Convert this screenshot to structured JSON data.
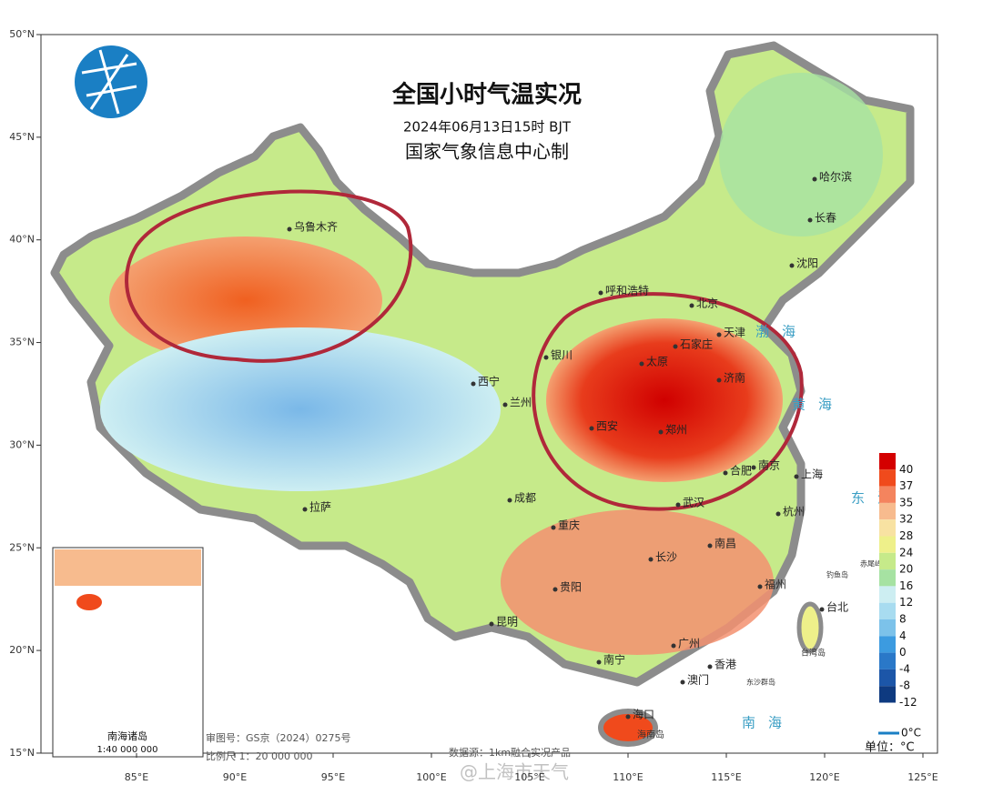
{
  "header": {
    "title": "全国小时气温实况",
    "subtitle": "2024年06月13日15时 BJT",
    "producer": "国家气象信息中心制"
  },
  "map": {
    "lat_ticks": [
      {
        "value": 50,
        "label": "50°N"
      },
      {
        "value": 45,
        "label": "45°N"
      },
      {
        "value": 40,
        "label": "40°N"
      },
      {
        "value": 35,
        "label": "35°N"
      },
      {
        "value": 30,
        "label": "30°N"
      },
      {
        "value": 25,
        "label": "25°N"
      },
      {
        "value": 20,
        "label": "20°N"
      },
      {
        "value": 15,
        "label": "15°N"
      }
    ],
    "lon_ticks": [
      {
        "value": 85,
        "label": "85°E"
      },
      {
        "value": 90,
        "label": "90°E"
      },
      {
        "value": 95,
        "label": "95°E"
      },
      {
        "value": 100,
        "label": "100°E"
      },
      {
        "value": 105,
        "label": "105°E"
      },
      {
        "value": 110,
        "label": "110°E"
      },
      {
        "value": 115,
        "label": "115°E"
      },
      {
        "value": 120,
        "label": "120°E"
      },
      {
        "value": 125,
        "label": "125°E"
      }
    ],
    "cities": [
      "乌鲁木齐",
      "哈尔滨",
      "长春",
      "沈阳",
      "呼和浩特",
      "北京",
      "天津",
      "石家庄",
      "太原",
      "济南",
      "银川",
      "西宁",
      "兰州",
      "西安",
      "郑州",
      "合肥",
      "南京",
      "上海",
      "拉萨",
      "成都",
      "重庆",
      "武汉",
      "杭州",
      "长沙",
      "南昌",
      "贵阳",
      "福州",
      "台北",
      "昆明",
      "南宁",
      "广州",
      "香港",
      "澳门",
      "海口"
    ],
    "islands": [
      "海南岛",
      "台湾岛",
      "东沙群岛",
      "钓鱼岛",
      "赤尾屿"
    ],
    "seas": [
      "渤海",
      "黄海",
      "东海",
      "南海"
    ]
  },
  "legend": {
    "unit": "单位：°C",
    "zero_line": "0°C",
    "items": [
      {
        "value": 40,
        "color": "#d40000"
      },
      {
        "value": 37,
        "color": "#f04a1c"
      },
      {
        "value": 35,
        "color": "#f4845e"
      },
      {
        "value": 32,
        "color": "#f7bb8e"
      },
      {
        "value": 28,
        "color": "#f8e2a2"
      },
      {
        "value": 24,
        "color": "#eef08a"
      },
      {
        "value": 20,
        "color": "#c6ea8a"
      },
      {
        "value": 16,
        "color": "#a6e2a2"
      },
      {
        "value": 12,
        "color": "#cdeef2"
      },
      {
        "value": 8,
        "color": "#a8dcf0"
      },
      {
        "value": 4,
        "color": "#7cc2ea"
      },
      {
        "value": 0,
        "color": "#3c9be0"
      },
      {
        "value": -4,
        "color": "#2a78c8"
      },
      {
        "value": -8,
        "color": "#1c56a8"
      },
      {
        "value": -12,
        "color": "#0e3a80"
      }
    ]
  },
  "inset": {
    "title": "南海诸岛",
    "scale": "1:40 000 000"
  },
  "footer": {
    "review": "审图号：GS京（2024）0275号",
    "scale": "比例尺 1：20 000 000",
    "source": "数据源：1km融合实况产品",
    "watermark": "@上海市天气"
  }
}
